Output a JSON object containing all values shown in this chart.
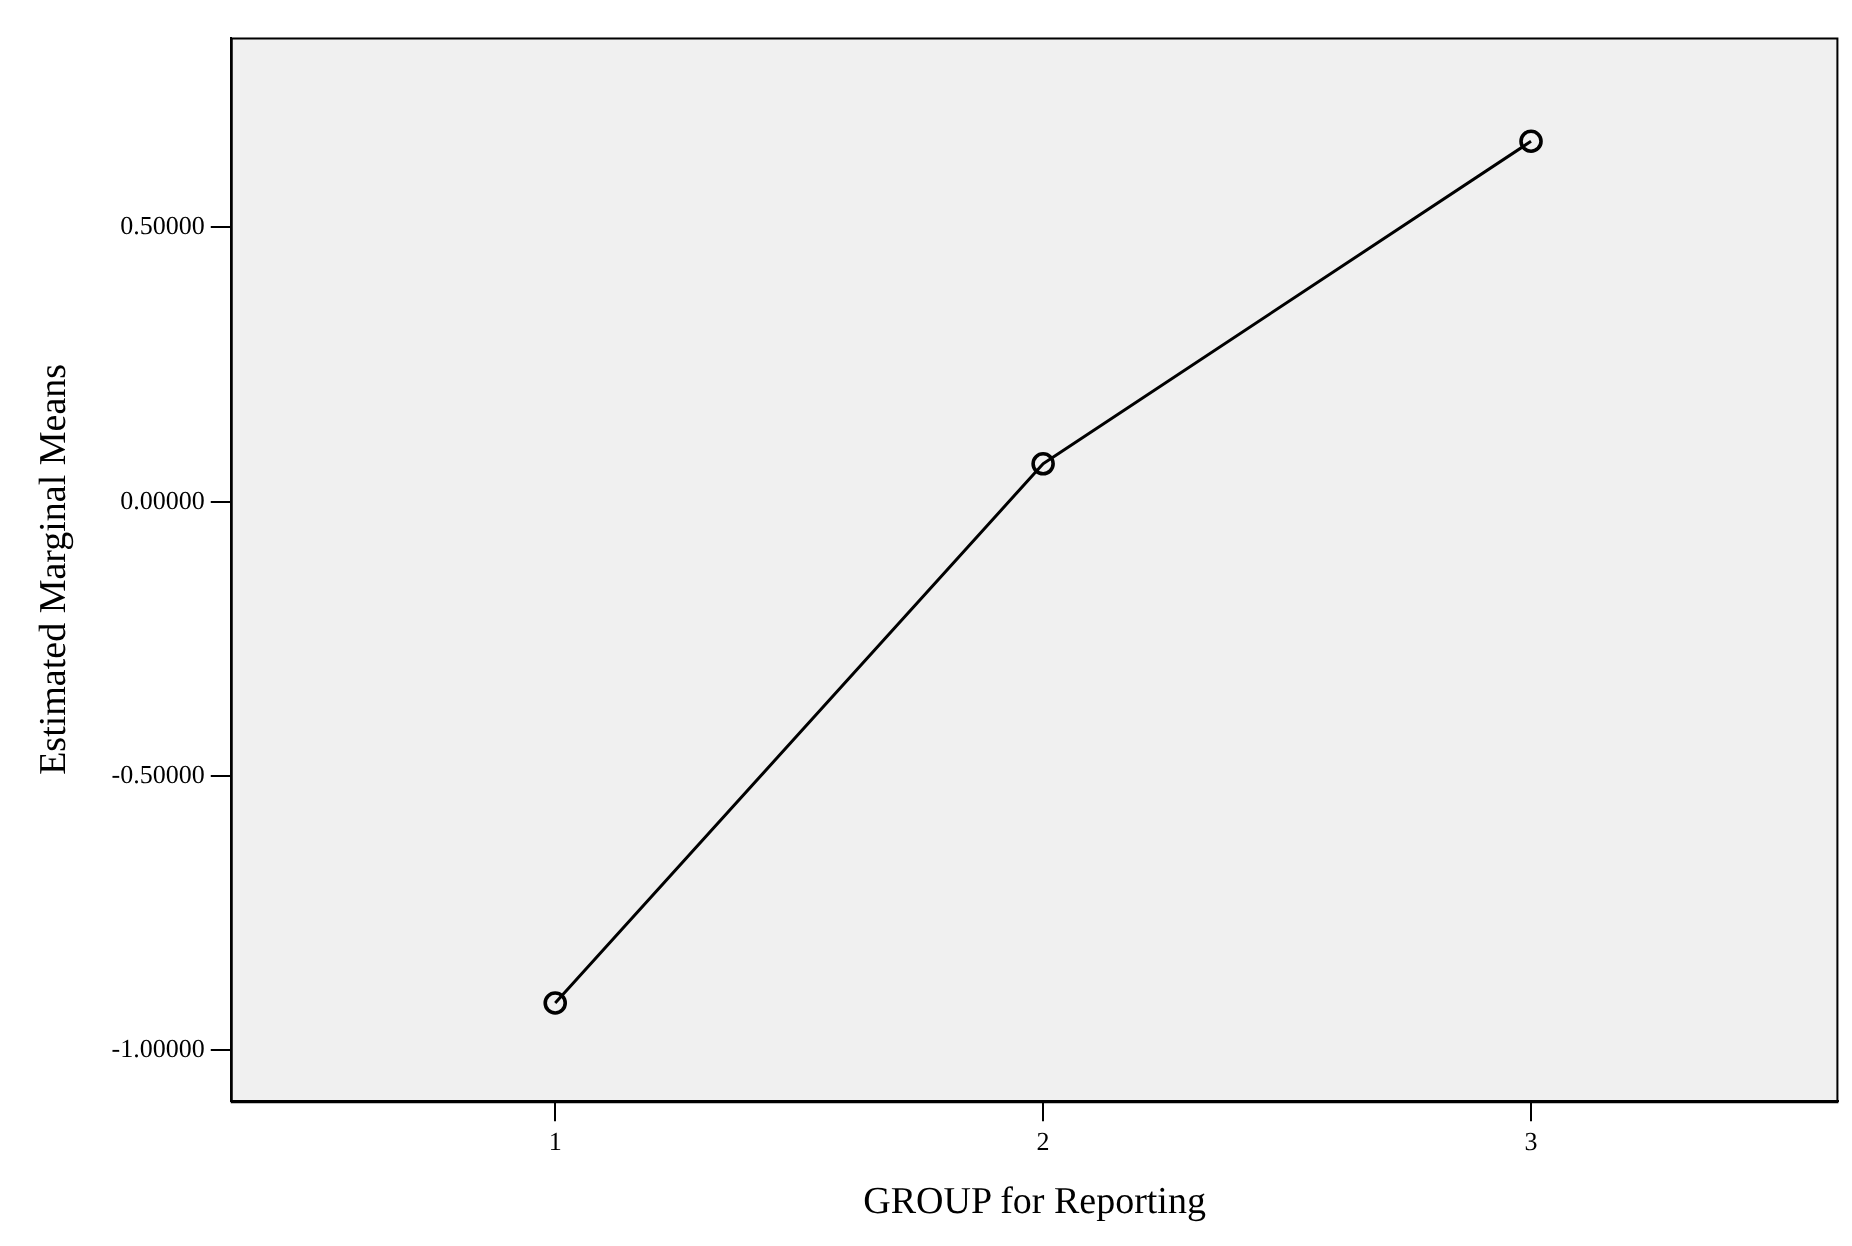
{
  "chart_data": {
    "type": "line",
    "xlabel": "GROUP for Reporting",
    "ylabel": "Estimated Marginal Means",
    "categories": [
      "1",
      "2",
      "3"
    ],
    "series": [
      {
        "color": "#000000",
        "values": [
          -0.914,
          0.069,
          0.657
        ]
      }
    ],
    "ylim": [
      -1.093,
      0.846
    ],
    "yticks": [
      {
        "value": -1,
        "label": "-1.00000"
      },
      {
        "value": -0.5,
        "label": "-0.50000"
      },
      {
        "value": 0,
        "label": "0.00000"
      },
      {
        "value": 0.5,
        "label": "0.50000"
      }
    ],
    "grid": false,
    "legend": false,
    "marker": "circle",
    "line_style": "solid"
  }
}
